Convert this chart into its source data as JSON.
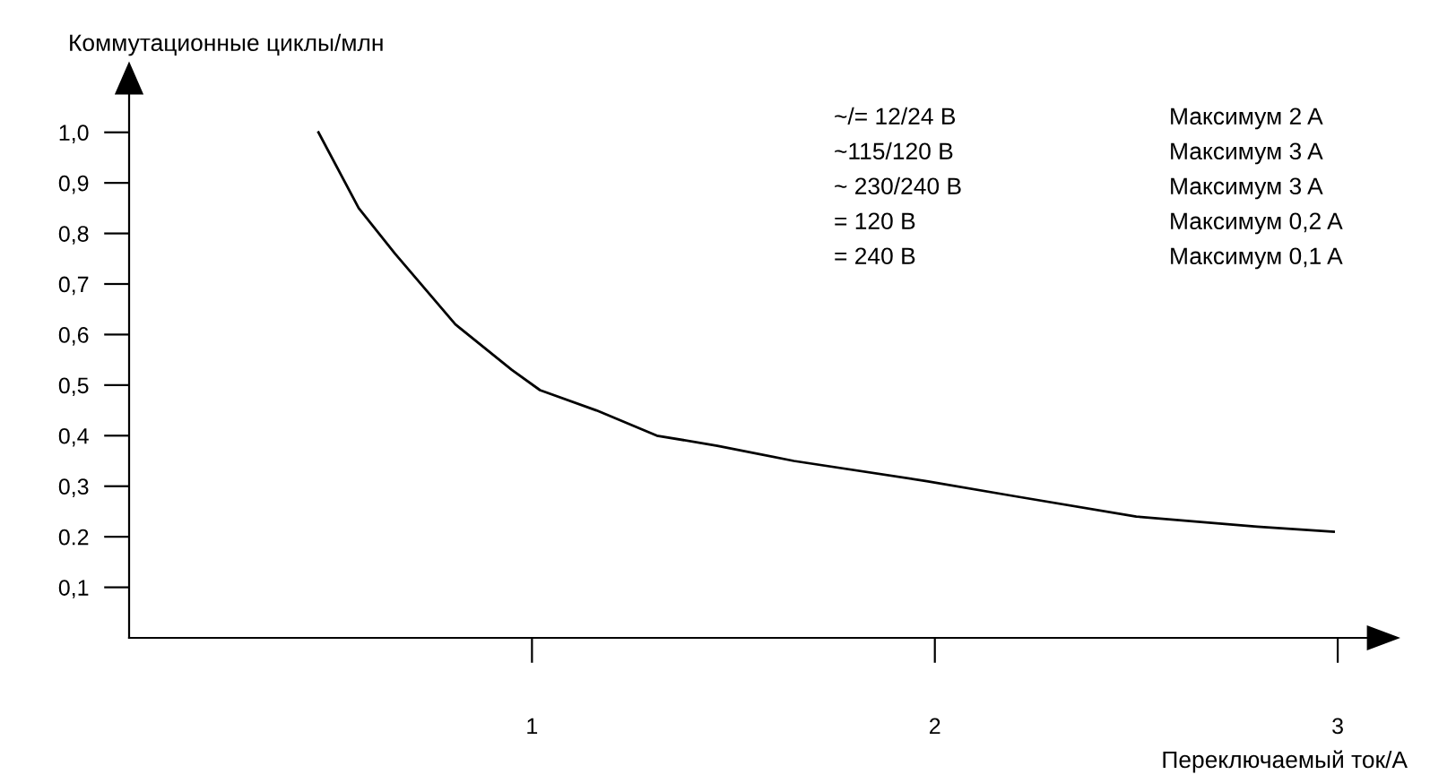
{
  "chart_data": {
    "type": "line",
    "xlabel": "Переключаемый ток/A",
    "ylabel": "Коммутационные циклы/млн",
    "x": [
      0.47,
      0.57,
      0.66,
      0.81,
      0.95,
      1.02,
      1.16,
      1.31,
      1.46,
      1.65,
      1.98,
      2.2,
      2.5,
      2.8,
      2.99
    ],
    "series": [
      {
        "color": "#000000",
        "values": [
          1.0,
          0.85,
          0.76,
          0.62,
          0.53,
          0.49,
          0.45,
          0.4,
          0.38,
          0.35,
          0.31,
          0.28,
          0.24,
          0.22,
          0.21
        ]
      }
    ],
    "xlim": [
      0,
      3.12
    ],
    "ylim": [
      0,
      1.12
    ],
    "xticks": [
      1,
      2,
      3
    ],
    "yticks": [
      {
        "value": 0.1,
        "label": "0,1"
      },
      {
        "value": 0.2,
        "label": "0.2"
      },
      {
        "value": 0.3,
        "label": "0,3"
      },
      {
        "value": 0.4,
        "label": "0,4"
      },
      {
        "value": 0.5,
        "label": "0,5"
      },
      {
        "value": 0.6,
        "label": "0,6"
      },
      {
        "value": 0.7,
        "label": "0,7"
      },
      {
        "value": 0.8,
        "label": "0,8"
      },
      {
        "value": 0.9,
        "label": "0,9"
      },
      {
        "value": 1.0,
        "label": "1,0"
      }
    ],
    "grid": false,
    "marker": "none",
    "line_style": "solid",
    "annotations": [
      "~/= 12/24 В",
      "Максимум 2 A",
      "~115/120 В",
      "Максимум 3 A",
      "~ 230/240 В",
      "Максимум 3 A",
      "= 120 В",
      "Максимум 0,2 A",
      "= 240 В",
      "Максимум 0,1 A"
    ]
  }
}
